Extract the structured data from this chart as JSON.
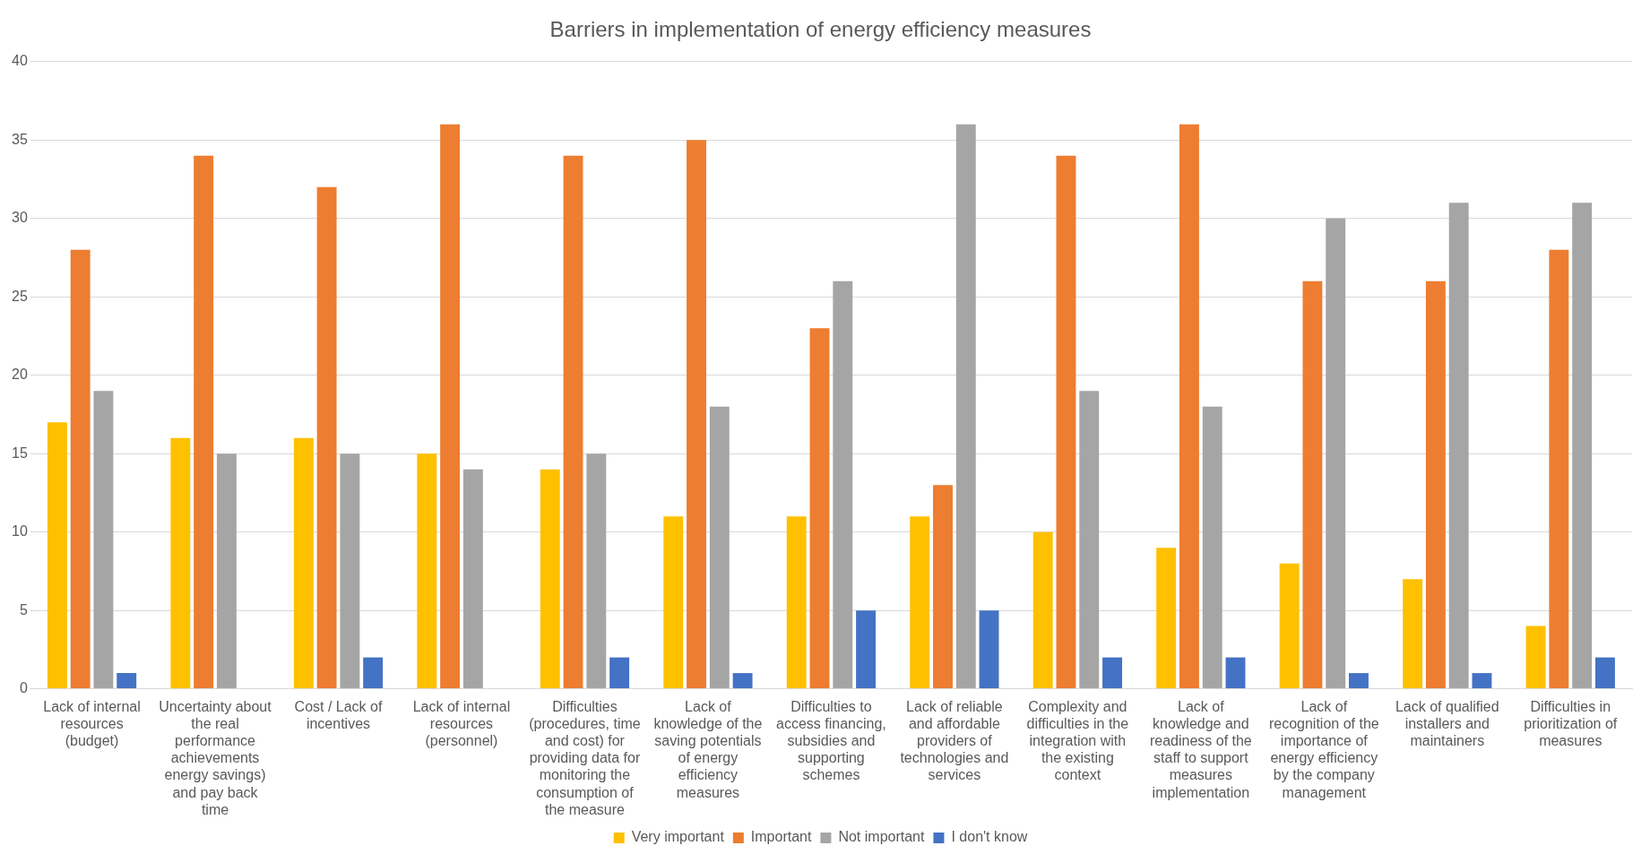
{
  "chart_data": {
    "type": "bar",
    "title": "Barriers in implementation of energy efficiency measures",
    "categories": [
      "Lack of internal resources (budget)",
      "Uncertainty about the real performance achievements energy savings) and pay back time",
      "Cost / Lack of incentives",
      "Lack of internal resources (personnel)",
      "Difficulties (procedures, time and cost) for providing data for monitoring the consumption of the measure",
      "Lack of knowledge of the saving potentials of energy efficiency measures",
      "Difficulties to access financing, subsidies and supporting schemes",
      "Lack of reliable and affordable providers of technologies and services",
      "Complexity and difficulties in the integration with the existing context",
      "Lack of knowledge and readiness of the staff to support measures implementation",
      "Lack of recognition of the importance of energy efficiency by the company management",
      "Lack of qualified installers and maintainers",
      "Difficulties in prioritization of measures"
    ],
    "series": [
      {
        "name": "Very important",
        "color": "#ffc000",
        "values": [
          17,
          16,
          16,
          15,
          14,
          11,
          11,
          11,
          10,
          9,
          8,
          7,
          4
        ]
      },
      {
        "name": "Important",
        "color": "#ed7d31",
        "values": [
          28,
          34,
          32,
          36,
          34,
          35,
          23,
          13,
          34,
          36,
          26,
          26,
          28
        ]
      },
      {
        "name": "Not important",
        "color": "#a5a5a5",
        "values": [
          19,
          15,
          15,
          14,
          15,
          18,
          26,
          36,
          19,
          18,
          30,
          31,
          31
        ]
      },
      {
        "name": "I don't know",
        "color": "#4472c4",
        "values": [
          1,
          0,
          2,
          0,
          2,
          1,
          5,
          5,
          2,
          2,
          1,
          1,
          2
        ]
      }
    ],
    "ylim": [
      0,
      40
    ],
    "yticks": [
      0,
      5,
      10,
      15,
      20,
      25,
      30,
      35,
      40
    ],
    "grid": "y",
    "legend": "bottom"
  }
}
